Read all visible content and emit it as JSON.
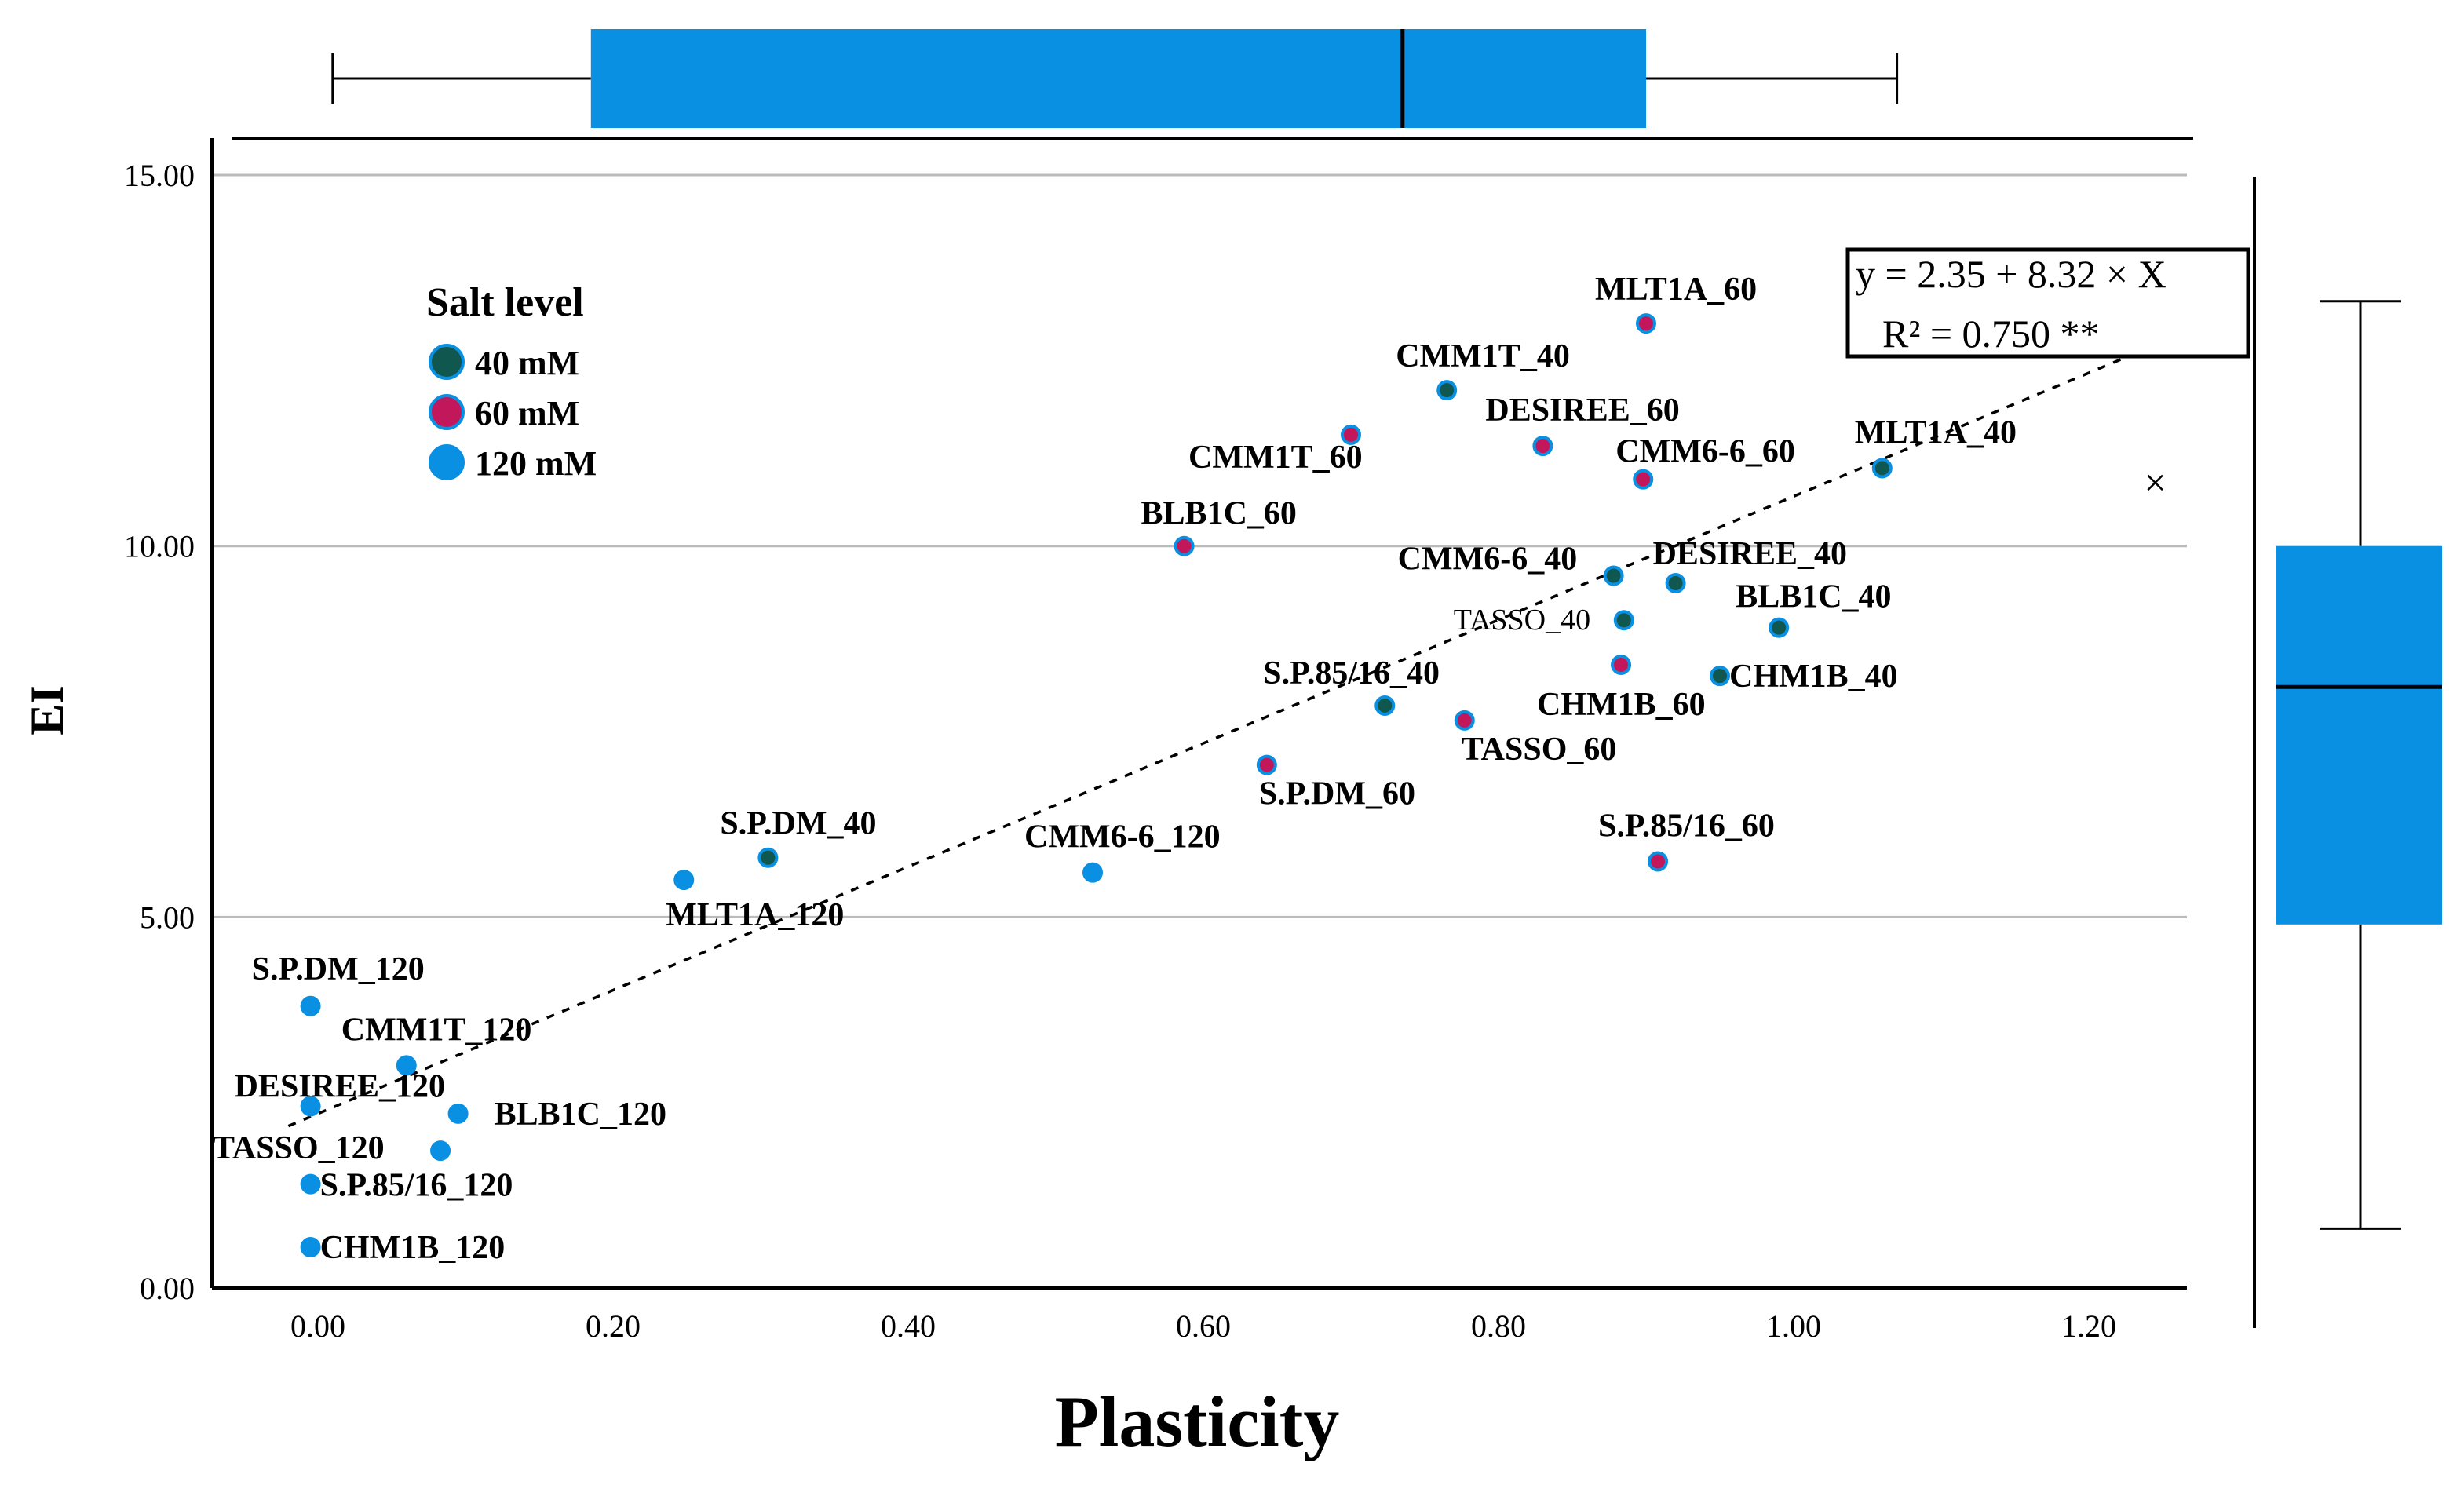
{
  "chart_data": {
    "type": "scatter",
    "xlabel": "Plasticity",
    "ylabel": "EI",
    "xlim": [
      -0.1,
      1.27
    ],
    "ylim": [
      0,
      15
    ],
    "x_ticks": [
      "0.00",
      "0.20",
      "0.40",
      "0.60",
      "0.80",
      "1.00",
      "1.20"
    ],
    "y_ticks": [
      "0.00",
      "5.00",
      "10.00",
      "15.00"
    ],
    "legend": {
      "title": "Salt level",
      "placement": "top-left",
      "entries": [
        {
          "label": "40 mM",
          "color": "#10574f"
        },
        {
          "label": "60 mM",
          "color": "#c2185b"
        },
        {
          "label": "120 mM",
          "color": "#0a90e3"
        }
      ]
    },
    "colors": {
      "ring": "#0a90e3",
      "box": "#0a90e3",
      "grid": "#bbbbbb"
    },
    "points": [
      {
        "label": "MLT1A_60",
        "x": 0.9,
        "y": 13.0,
        "group": 1
      },
      {
        "label": "CMM1T_40",
        "x": 0.765,
        "y": 12.1,
        "group": 0
      },
      {
        "label": "DESIREE_60",
        "x": 0.83,
        "y": 11.35,
        "group": 1
      },
      {
        "label": "CMM1T_60",
        "x": 0.7,
        "y": 11.5,
        "group": 1
      },
      {
        "label": "CMM6-6_60",
        "x": 0.898,
        "y": 10.9,
        "group": 1
      },
      {
        "label": "MLT1A_40",
        "x": 1.06,
        "y": 11.05,
        "group": 0
      },
      {
        "label": "BLB1C_60",
        "x": 0.587,
        "y": 10.0,
        "group": 1
      },
      {
        "label": "CMM6-6_40",
        "x": 0.878,
        "y": 9.6,
        "group": 0
      },
      {
        "label": "DESIREE_40",
        "x": 0.92,
        "y": 9.5,
        "group": 0
      },
      {
        "label": "TASSO_40",
        "x": 0.885,
        "y": 9.0,
        "group": 0
      },
      {
        "label": "BLB1C_40",
        "x": 0.99,
        "y": 8.9,
        "group": 0
      },
      {
        "label": "S.P.85/16_40",
        "x": 0.723,
        "y": 7.85,
        "group": 0
      },
      {
        "label": "CHM1B_60",
        "x": 0.883,
        "y": 8.4,
        "group": 1
      },
      {
        "label": "CHM1B_40",
        "x": 0.95,
        "y": 8.25,
        "group": 0
      },
      {
        "label": "TASSO_60",
        "x": 0.777,
        "y": 7.65,
        "group": 1
      },
      {
        "label": "S.P.DM_60",
        "x": 0.643,
        "y": 7.05,
        "group": 1
      },
      {
        "label": "S.P.85/16_60",
        "x": 0.908,
        "y": 5.75,
        "group": 1
      },
      {
        "label": "S.P.DM_40",
        "x": 0.305,
        "y": 5.8,
        "group": 0
      },
      {
        "label": "CMM6-6_120",
        "x": 0.525,
        "y": 5.6,
        "group": 2
      },
      {
        "label": "MLT1A_120",
        "x": 0.248,
        "y": 5.5,
        "group": 2
      },
      {
        "label": "S.P.DM_120",
        "x": -0.005,
        "y": 3.8,
        "group": 2
      },
      {
        "label": "CMM1T_120",
        "x": 0.06,
        "y": 3.0,
        "group": 2
      },
      {
        "label": "DESIREE_120",
        "x": -0.005,
        "y": 2.45,
        "group": 2
      },
      {
        "label": "BLB1C_120",
        "x": 0.095,
        "y": 2.35,
        "group": 2
      },
      {
        "label": "TASSO_120",
        "x": 0.083,
        "y": 1.85,
        "group": 2
      },
      {
        "label": "S.P.85/16_120",
        "x": -0.005,
        "y": 1.4,
        "group": 2
      },
      {
        "label": "CHM1B_120",
        "x": -0.005,
        "y": 0.55,
        "group": 2
      }
    ],
    "regression": {
      "intercept": 2.35,
      "slope": 8.32,
      "x_range": [
        -0.02,
        1.26
      ],
      "equation": "y = 2.35 + 8.32 × X",
      "r2": "R² = 0.750 **"
    },
    "top_boxplot": {
      "min": 0.01,
      "q1": 0.185,
      "median": 0.735,
      "q3": 0.9,
      "max": 1.07
    },
    "right_boxplot": {
      "min": 0.8,
      "q1": 4.9,
      "median": 8.1,
      "q3": 10.0,
      "max": 13.3
    },
    "outlier_marker": {
      "x": 1.245,
      "y": 10.85,
      "symbol": "×"
    }
  }
}
